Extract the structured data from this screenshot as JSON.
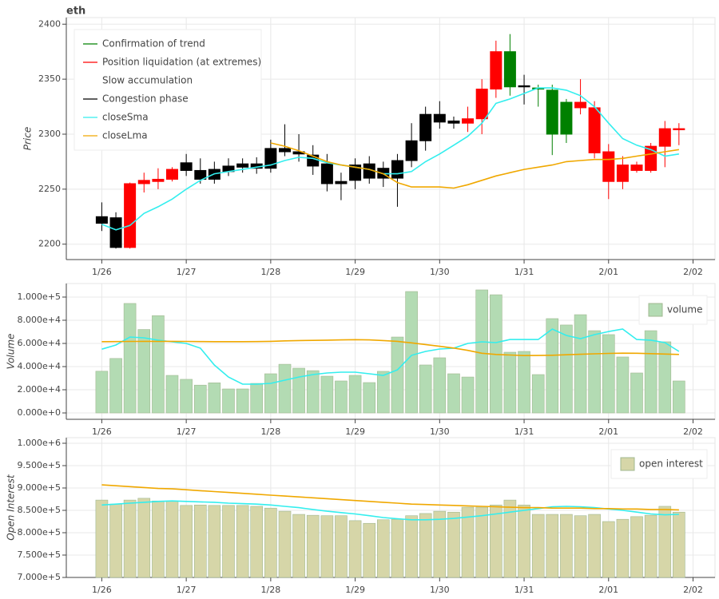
{
  "chart_data": [
    {
      "type": "candlestick",
      "title": "eth",
      "y_label": "Price",
      "grid": true,
      "legend": "top-left",
      "x": [
        0,
        0.167,
        0.333,
        0.5,
        0.667,
        0.833,
        1,
        1.167,
        1.333,
        1.5,
        1.667,
        1.833,
        2,
        2.167,
        2.333,
        2.5,
        2.667,
        2.833,
        3,
        3.167,
        3.333,
        3.5,
        3.667,
        3.833,
        4,
        4.167,
        4.333,
        4.5,
        4.667,
        4.833,
        5,
        5.167,
        5.333,
        5.5,
        5.667,
        5.833,
        6,
        6.167,
        6.333,
        6.5,
        6.667,
        6.833
      ],
      "open": [
        2219,
        2224,
        2197,
        2255,
        2257,
        2259,
        2267,
        2267,
        2259,
        2266,
        2270,
        2269,
        2269,
        2287,
        2284,
        2281,
        2273,
        2257,
        2258,
        2260,
        2269,
        2260,
        2276,
        2294,
        2318,
        2312,
        2310,
        2314,
        2341,
        2375,
        2344,
        2342,
        2340,
        2329,
        2324,
        2324,
        2284,
        2257,
        2267,
        2267,
        2289,
        2304
      ],
      "high": [
        2238,
        2229,
        2256,
        2265,
        2269,
        2270,
        2282,
        2278,
        2275,
        2278,
        2278,
        2279,
        2295,
        2309,
        2300,
        2290,
        2282,
        2265,
        2278,
        2280,
        2275,
        2282,
        2310,
        2325,
        2330,
        2316,
        2325,
        2350,
        2385,
        2391,
        2354,
        2345,
        2345,
        2332,
        2350,
        2330,
        2291,
        2280,
        2275,
        2292,
        2312,
        2310
      ],
      "low": [
        2212,
        2196,
        2196,
        2247,
        2250,
        2257,
        2262,
        2255,
        2255,
        2262,
        2265,
        2264,
        2265,
        2280,
        2275,
        2263,
        2248,
        2240,
        2250,
        2255,
        2252,
        2234,
        2270,
        2285,
        2305,
        2305,
        2302,
        2300,
        2333,
        2335,
        2327,
        2325,
        2281,
        2292,
        2318,
        2278,
        2241,
        2250,
        2265,
        2265,
        2270,
        2290
      ],
      "close": [
        2225,
        2197,
        2255,
        2258,
        2259,
        2268,
        2274,
        2259,
        2268,
        2271,
        2273,
        2273,
        2287,
        2284,
        2282,
        2271,
        2255,
        2255,
        2272,
        2273,
        2260,
        2276,
        2294,
        2318,
        2311,
        2310,
        2314,
        2341,
        2375,
        2343,
        2343,
        2341,
        2300,
        2300,
        2329,
        2283,
        2257,
        2272,
        2272,
        2289,
        2305,
        2305
      ],
      "colors": [
        "#000000",
        "#000000",
        "#ff0000",
        "#ff0000",
        "#ff0000",
        "#ff0000",
        "#000000",
        "#000000",
        "#000000",
        "#000000",
        "#000000",
        "#000000",
        "#000000",
        "#000000",
        "#000000",
        "#000000",
        "#000000",
        "#000000",
        "#000000",
        "#000000",
        "#000000",
        "#000000",
        "#000000",
        "#000000",
        "#000000",
        "#000000",
        "#ff0000",
        "#ff0000",
        "#ff0000",
        "#008000",
        "#000000",
        "#008000",
        "#008000",
        "#008000",
        "#ff0000",
        "#ff0000",
        "#ff0000",
        "#ff0000",
        "#ff0000",
        "#ff0000",
        "#ff0000",
        "#ff0000"
      ],
      "regimes": [
        {
          "name": "Confirmation of trend",
          "color": "#008000"
        },
        {
          "name": "Position liquidation (at extremes)",
          "color": "#ff0000"
        },
        {
          "name": "Slow accumulation",
          "color": "#ffffff"
        },
        {
          "name": "Congestion phase",
          "color": "#000000"
        }
      ],
      "lines": [
        {
          "name": "closeSma",
          "color": "#33eeee",
          "values": [
            2218,
            2213,
            2217,
            2228,
            2234,
            2241,
            2250,
            2258,
            2264,
            2266,
            2268,
            2270,
            2272,
            2276,
            2279,
            2278,
            2274,
            2272,
            2270,
            2268,
            2264,
            2264,
            2266,
            2275,
            2282,
            2290,
            2298,
            2310,
            2328,
            2332,
            2337,
            2342,
            2342,
            2340,
            2335,
            2325,
            2310,
            2296,
            2290,
            2286,
            2280,
            2282
          ]
        },
        {
          "name": "closeLma",
          "color": "#f0a800",
          "values": [
            null,
            null,
            null,
            null,
            null,
            null,
            null,
            null,
            null,
            null,
            null,
            null,
            2292,
            2289,
            2285,
            2280,
            2275,
            2272,
            2270,
            2268,
            2264,
            2256,
            2252,
            2252,
            2252,
            2251,
            2254,
            2258,
            2262,
            2265,
            2268,
            2270,
            2272,
            2275,
            2276,
            2277,
            2277,
            2278,
            2280,
            2282,
            2284,
            2286
          ]
        }
      ],
      "xlim": [
        -0.42,
        7.26
      ],
      "ylim": [
        2186,
        2406
      ],
      "yticks": [
        2200,
        2250,
        2300,
        2350,
        2400
      ],
      "xticks": [
        {
          "value": 0,
          "label": "1/26"
        },
        {
          "value": 1,
          "label": "1/27"
        },
        {
          "value": 2,
          "label": "1/28"
        },
        {
          "value": 3,
          "label": "1/29"
        },
        {
          "value": 4,
          "label": "1/30"
        },
        {
          "value": 5,
          "label": "1/31"
        },
        {
          "value": 6,
          "label": "2/01"
        },
        {
          "value": 7,
          "label": "2/02"
        }
      ]
    },
    {
      "type": "bar",
      "y_label": "Volume",
      "grid": true,
      "legend": "top-right",
      "x": [
        0,
        0.167,
        0.333,
        0.5,
        0.667,
        0.833,
        1,
        1.167,
        1.333,
        1.5,
        1.667,
        1.833,
        2,
        2.167,
        2.333,
        2.5,
        2.667,
        2.833,
        3,
        3.167,
        3.333,
        3.5,
        3.667,
        3.833,
        4,
        4.167,
        4.333,
        4.5,
        4.667,
        4.833,
        5,
        5.167,
        5.333,
        5.5,
        5.667,
        5.833,
        6,
        6.167,
        6.333,
        6.5,
        6.667,
        6.833
      ],
      "series": [
        {
          "name": "volume",
          "color": "#b3dbb3",
          "values": [
            36000,
            47000,
            94500,
            72000,
            84000,
            32400,
            29000,
            24000,
            26000,
            20700,
            20700,
            25500,
            33800,
            42000,
            38600,
            36500,
            31700,
            27600,
            32400,
            26200,
            35900,
            65500,
            104800,
            41400,
            47600,
            33800,
            31000,
            106200,
            102000,
            52400,
            53100,
            33100,
            81400,
            75900,
            84800,
            71000,
            67600,
            48300,
            34500,
            71000,
            61400,
            27600
          ]
        }
      ],
      "lines": [
        {
          "color": "#33eeee",
          "values": [
            55000,
            58600,
            65500,
            64800,
            62800,
            61400,
            60000,
            55900,
            41400,
            31000,
            24800,
            24800,
            25500,
            28300,
            31000,
            33100,
            34500,
            35200,
            35200,
            33800,
            32400,
            37200,
            49700,
            53100,
            55200,
            55900,
            60000,
            61400,
            60700,
            63400,
            63400,
            63400,
            72400,
            66900,
            64100,
            67600,
            70300,
            72400,
            63400,
            62800,
            60700,
            53100
          ]
        },
        {
          "color": "#f0a800",
          "values": [
            61500,
            61600,
            61700,
            61800,
            61800,
            61800,
            61700,
            61600,
            61500,
            61500,
            61500,
            61600,
            61800,
            62200,
            62500,
            62600,
            62800,
            63000,
            63200,
            63000,
            62500,
            61800,
            60500,
            59000,
            57500,
            56000,
            54000,
            51500,
            50500,
            50000,
            49500,
            49600,
            49800,
            50200,
            50600,
            51000,
            51400,
            51600,
            51500,
            51200,
            50800,
            50500
          ]
        }
      ],
      "xlim": [
        -0.42,
        7.26
      ],
      "ylim": [
        -5500,
        111700
      ],
      "yticks": [
        {
          "value": 0,
          "label": "0.000e+0"
        },
        {
          "value": 20000,
          "label": "2.000e+4"
        },
        {
          "value": 40000,
          "label": "4.000e+4"
        },
        {
          "value": 60000,
          "label": "6.000e+4"
        },
        {
          "value": 80000,
          "label": "8.000e+4"
        },
        {
          "value": 100000,
          "label": "1.000e+5"
        }
      ],
      "xticks": [
        {
          "value": 0,
          "label": "1/26"
        },
        {
          "value": 1,
          "label": "1/27"
        },
        {
          "value": 2,
          "label": "1/28"
        },
        {
          "value": 3,
          "label": "1/29"
        },
        {
          "value": 4,
          "label": "1/30"
        },
        {
          "value": 5,
          "label": "1/31"
        },
        {
          "value": 6,
          "label": "2/01"
        },
        {
          "value": 7,
          "label": "2/02"
        }
      ]
    },
    {
      "type": "bar",
      "y_label": "Open Interest",
      "grid": true,
      "legend": "top-right",
      "x": [
        0,
        0.167,
        0.333,
        0.5,
        0.667,
        0.833,
        1,
        1.167,
        1.333,
        1.5,
        1.667,
        1.833,
        2,
        2.167,
        2.333,
        2.5,
        2.667,
        2.833,
        3,
        3.167,
        3.333,
        3.5,
        3.667,
        3.833,
        4,
        4.167,
        4.333,
        4.5,
        4.667,
        4.833,
        5,
        5.167,
        5.333,
        5.5,
        5.667,
        5.833,
        6,
        6.167,
        6.333,
        6.5,
        6.667,
        6.833
      ],
      "series": [
        {
          "name": "open interest",
          "color": "#d6d6a8",
          "values": [
            873000,
            864000,
            873000,
            877000,
            871000,
            871000,
            861000,
            862000,
            861000,
            861000,
            861000,
            859000,
            855000,
            848000,
            841000,
            839000,
            838000,
            838000,
            827000,
            821000,
            829000,
            830000,
            838000,
            843000,
            848000,
            846000,
            857000,
            857000,
            862000,
            873000,
            862000,
            841000,
            841000,
            841000,
            838000,
            841000,
            825000,
            830000,
            836000,
            839000,
            859000,
            846000
          ]
        }
      ],
      "lines": [
        {
          "color": "#33eeee",
          "values": [
            862000,
            864000,
            866000,
            868000,
            870000,
            871000,
            870000,
            869000,
            868000,
            866000,
            865000,
            864000,
            862000,
            859000,
            856000,
            852000,
            848000,
            845000,
            842000,
            838000,
            834000,
            831000,
            829000,
            829000,
            830000,
            832000,
            835000,
            838000,
            842000,
            846000,
            850000,
            854000,
            858000,
            859000,
            858000,
            856000,
            853000,
            850000,
            846000,
            842000,
            840000,
            841000
          ]
        },
        {
          "color": "#f0a800",
          "values": [
            907000,
            905000,
            903000,
            901000,
            899000,
            898000,
            896000,
            894000,
            892000,
            890000,
            888000,
            886000,
            884000,
            882000,
            880000,
            878000,
            876000,
            874000,
            872000,
            870000,
            868000,
            866000,
            864000,
            863000,
            862000,
            861000,
            860000,
            859000,
            858000,
            857000,
            856000,
            856000,
            855000,
            855000,
            855000,
            854000,
            854000,
            853000,
            853000,
            852000,
            852000,
            851000
          ]
        }
      ],
      "xlim": [
        -0.42,
        7.26
      ],
      "ylim": [
        700000,
        1012500
      ],
      "yticks": [
        {
          "value": 700000,
          "label": "7.000e+5"
        },
        {
          "value": 750000,
          "label": "7.500e+5"
        },
        {
          "value": 800000,
          "label": "8.000e+5"
        },
        {
          "value": 850000,
          "label": "8.500e+5"
        },
        {
          "value": 900000,
          "label": "9.000e+5"
        },
        {
          "value": 950000,
          "label": "9.500e+5"
        },
        {
          "value": 1000000,
          "label": "1.000e+6"
        }
      ],
      "xticks": [
        {
          "value": 0,
          "label": "1/26"
        },
        {
          "value": 1,
          "label": "1/27"
        },
        {
          "value": 2,
          "label": "1/28"
        },
        {
          "value": 3,
          "label": "1/29"
        },
        {
          "value": 4,
          "label": "1/30"
        },
        {
          "value": 5,
          "label": "1/31"
        },
        {
          "value": 6,
          "label": "2/01"
        },
        {
          "value": 7,
          "label": "2/02"
        }
      ]
    }
  ]
}
